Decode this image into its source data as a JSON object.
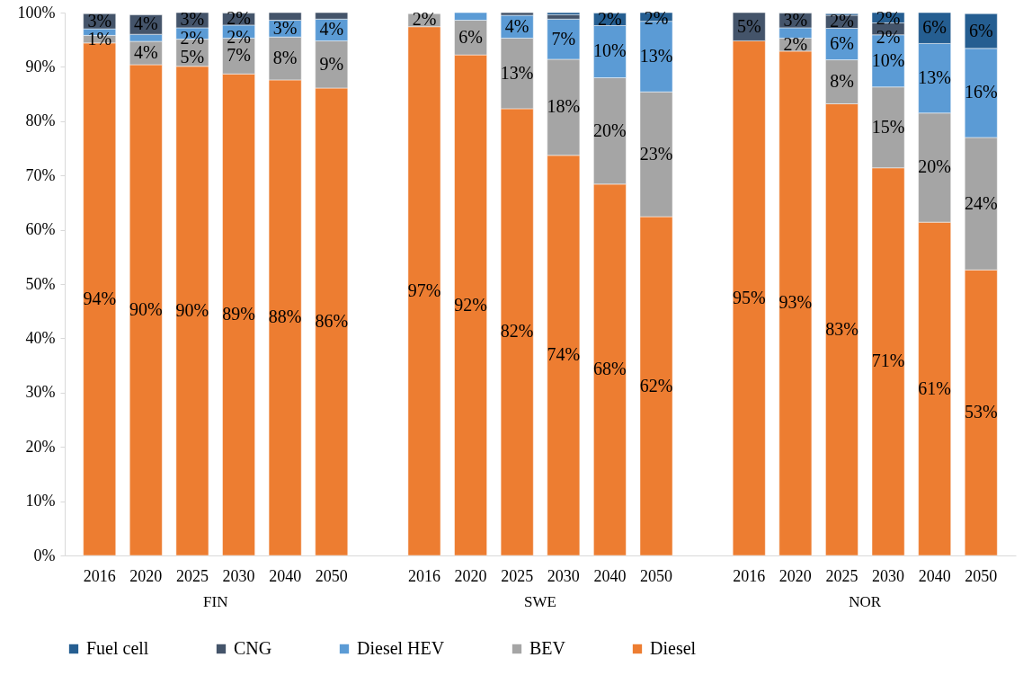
{
  "chart_data": {
    "type": "bar",
    "stacked": true,
    "legend": "bottom",
    "grid": false,
    "categories": [
      "2016",
      "2020",
      "2025",
      "2030",
      "2040",
      "2050",
      null,
      "2016",
      "2020",
      "2025",
      "2030",
      "2040",
      "2050",
      null,
      "2016",
      "2020",
      "2025",
      "2030",
      "2040",
      "2050"
    ],
    "annotations": [
      "FIN",
      "SWE",
      "NOR"
    ],
    "ylim": [
      0,
      100
    ],
    "yticks": [
      {
        "value": 0,
        "label": "0%"
      },
      {
        "value": 10,
        "label": "10%"
      },
      {
        "value": 20,
        "label": "20%"
      },
      {
        "value": 30,
        "label": "30%"
      },
      {
        "value": 40,
        "label": "40%"
      },
      {
        "value": 50,
        "label": "50%"
      },
      {
        "value": 60,
        "label": "60%"
      },
      {
        "value": 70,
        "label": "70%"
      },
      {
        "value": 80,
        "label": "80%"
      },
      {
        "value": 90,
        "label": "90%"
      },
      {
        "value": 100,
        "label": "100%"
      }
    ],
    "series": [
      {
        "name": "Diesel",
        "color": "#ed7d31",
        "values": [
          94.4,
          90.4,
          90.1,
          88.7,
          87.6,
          86.1,
          null,
          97.4,
          92.2,
          82.3,
          73.7,
          68.4,
          62.4,
          null,
          94.8,
          92.9,
          83.2,
          71.4,
          61.4,
          52.6
        ],
        "value_labels": [
          "94%",
          "90%",
          "90%",
          "89%",
          "88%",
          "86%",
          null,
          "97%",
          "92%",
          "82%",
          "74%",
          "68%",
          "62%",
          null,
          "95%",
          "93%",
          "83%",
          "71%",
          "61%",
          "53%"
        ]
      },
      {
        "name": "BEV",
        "color": "#a5a5a5",
        "values": [
          1.4,
          4.3,
          5.0,
          6.6,
          7.9,
          8.7,
          null,
          2.4,
          6.4,
          13.0,
          17.7,
          19.6,
          23.0,
          null,
          null,
          2.4,
          8.1,
          14.9,
          20.1,
          24.4
        ],
        "value_labels": [
          "1%",
          "4%",
          "5%",
          "7%",
          "8%",
          "9%",
          null,
          "2%",
          "6%",
          "13%",
          "18%",
          "20%",
          "23%",
          null,
          null,
          "2%",
          "8%",
          "15%",
          "20%",
          "24%"
        ]
      },
      {
        "name": "Diesel HEV",
        "color": "#5b9bd5",
        "values": [
          1.2,
          1.3,
          2.1,
          2.4,
          3.1,
          4.0,
          null,
          null,
          1.4,
          4.2,
          7.4,
          9.6,
          13.0,
          null,
          null,
          1.9,
          5.8,
          9.6,
          12.8,
          16.4
        ],
        "value_labels": [
          null,
          null,
          "2%",
          "2%",
          "3%",
          "4%",
          null,
          null,
          null,
          "4%",
          "7%",
          "10%",
          "13%",
          null,
          null,
          null,
          "6%",
          "10%",
          "13%",
          "16%"
        ]
      },
      {
        "name": "CNG",
        "color": "#44546a",
        "values": [
          2.8,
          3.6,
          2.8,
          2.2,
          1.4,
          1.2,
          null,
          null,
          null,
          0.5,
          0.8,
          null,
          null,
          null,
          5.2,
          2.7,
          2.4,
          2.2,
          null,
          null
        ],
        "value_labels": [
          "3%",
          "4%",
          "3%",
          "2%",
          null,
          null,
          null,
          null,
          null,
          null,
          null,
          null,
          null,
          null,
          "5%",
          "3%",
          "2%",
          "2%",
          null,
          null
        ]
      },
      {
        "name": "Fuel cell",
        "color": "#255e91",
        "values": [
          null,
          null,
          null,
          null,
          null,
          null,
          null,
          null,
          null,
          null,
          0.4,
          2.3,
          1.6,
          null,
          null,
          null,
          0.3,
          1.9,
          5.7,
          6.4
        ],
        "value_labels": [
          null,
          null,
          null,
          null,
          null,
          null,
          null,
          null,
          null,
          null,
          null,
          "2%",
          "2%",
          null,
          null,
          null,
          null,
          "2%",
          "6%",
          "6%"
        ]
      }
    ]
  }
}
